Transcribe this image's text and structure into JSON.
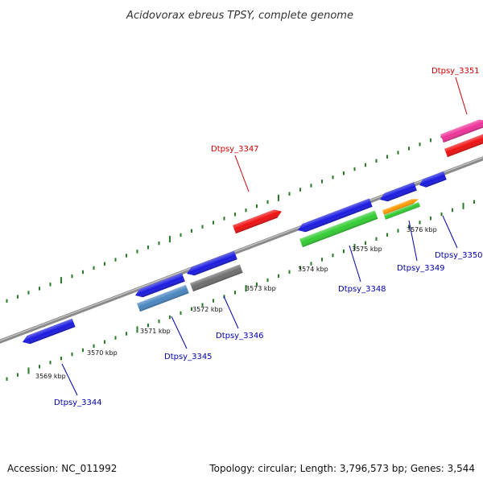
{
  "title": "Acidovorax ebreus TPSY, complete genome",
  "footer": {
    "accession": "Accession: NC_011992",
    "summary": "Topology: circular; Length: 3,796,573 bp; Genes: 3,544"
  },
  "colors": {
    "backbone": "#8a8a8a",
    "tick": "#2a7a2a",
    "forward_label": "#cc0000",
    "reverse_label": "#0000aa"
  },
  "axis_labels": [
    {
      "text": "3569 kbp",
      "kbp": 3569
    },
    {
      "text": "3570 kbp",
      "kbp": 3570
    },
    {
      "text": "3571 kbp",
      "kbp": 3571
    },
    {
      "text": "3572 kbp",
      "kbp": 3572
    },
    {
      "text": "3573 kbp",
      "kbp": 3573
    },
    {
      "text": "3574 kbp",
      "kbp": 3574
    },
    {
      "text": "3575 kbp",
      "kbp": 3575
    },
    {
      "text": "3576 kbp",
      "kbp": 3576
    }
  ],
  "gene_labels": [
    {
      "id": "dtpsy-3344",
      "text": "Dtpsy_3344",
      "strand": "reverse"
    },
    {
      "id": "dtpsy-3345",
      "text": "Dtpsy_3345",
      "strand": "reverse"
    },
    {
      "id": "dtpsy-3346",
      "text": "Dtpsy_3346",
      "strand": "reverse"
    },
    {
      "id": "dtpsy-3347",
      "text": "Dtpsy_3347",
      "strand": "forward"
    },
    {
      "id": "dtpsy-3348",
      "text": "Dtpsy_3348",
      "strand": "reverse"
    },
    {
      "id": "dtpsy-3349",
      "text": "Dtpsy_3349",
      "strand": "reverse"
    },
    {
      "id": "dtpsy-3350",
      "text": "Dtpsy_3350",
      "strand": "reverse"
    },
    {
      "id": "dtpsy-3351",
      "text": "Dtpsy_3351",
      "strand": "forward"
    }
  ],
  "features": [
    {
      "id": "f1",
      "name": "feature-blue",
      "color": "#1a1ae0"
    },
    {
      "id": "f2",
      "name": "feature-blue",
      "color": "#1a1ae0"
    },
    {
      "id": "f3",
      "name": "feature-blue",
      "color": "#1a1ae0"
    },
    {
      "id": "f4",
      "name": "feature-blue",
      "color": "#1a1ae0"
    },
    {
      "id": "f5",
      "name": "feature-blue",
      "color": "#1a1ae0"
    },
    {
      "id": "f6",
      "name": "feature-blue",
      "color": "#1a1ae0"
    },
    {
      "id": "f7",
      "name": "feature-blue",
      "color": "#1a1ae0"
    },
    {
      "id": "f8",
      "name": "feature-steelblue",
      "color": "#4a86c0"
    },
    {
      "id": "f9",
      "name": "feature-gray",
      "color": "#6e6e6e"
    },
    {
      "id": "f10",
      "name": "feature-green",
      "color": "#33cc33"
    },
    {
      "id": "f11",
      "name": "feature-orange",
      "color": "#ff9900"
    },
    {
      "id": "f12",
      "name": "feature-green",
      "color": "#33cc33"
    },
    {
      "id": "f13",
      "name": "feature-red",
      "color": "#ee1111"
    },
    {
      "id": "f14",
      "name": "feature-magenta",
      "color": "#ee3399"
    },
    {
      "id": "f15",
      "name": "feature-red",
      "color": "#ee1111"
    }
  ]
}
